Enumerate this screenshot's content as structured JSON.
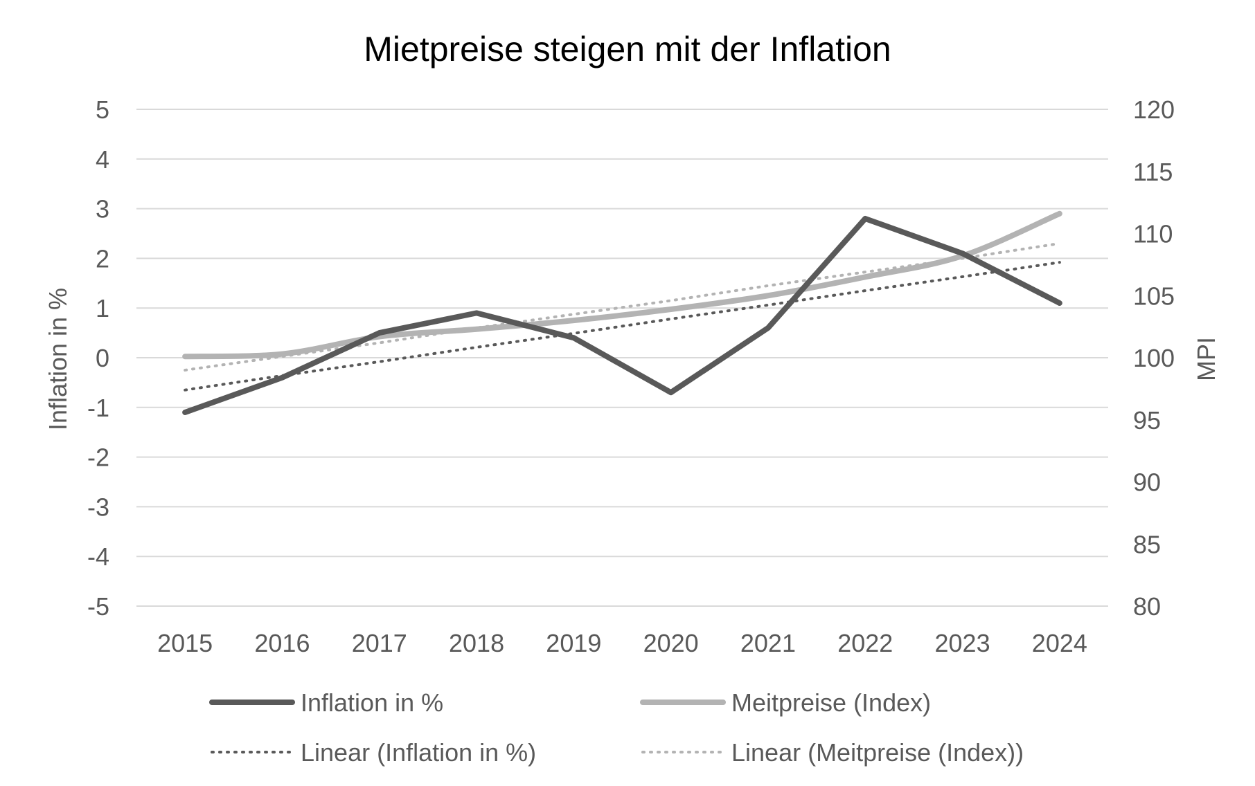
{
  "chart_data": {
    "type": "line",
    "title": "Mietpreise steigen mit der Inflation",
    "categories": [
      "2015",
      "2016",
      "2017",
      "2018",
      "2019",
      "2020",
      "2021",
      "2022",
      "2023",
      "2024"
    ],
    "y_left": {
      "label": "Inflation in %",
      "lim": [
        -5,
        5
      ],
      "ticks": [
        "5",
        "4",
        "3",
        "2",
        "1",
        "0",
        "-1",
        "-2",
        "-3",
        "-4",
        "-5"
      ]
    },
    "y_right": {
      "label": "MPI",
      "lim": [
        80,
        120
      ],
      "ticks": [
        "120",
        "115",
        "110",
        "105",
        "100",
        "95",
        "90",
        "85",
        "80"
      ]
    },
    "grid": true,
    "legend_position": "bottom",
    "series": [
      {
        "name": "Inflation in %",
        "axis": "left",
        "style": "solid",
        "color": "#595959",
        "values": [
          -1.1,
          -0.4,
          0.5,
          0.9,
          0.4,
          -0.7,
          0.6,
          2.8,
          2.1,
          1.1
        ]
      },
      {
        "name": "Meitpreise (Index)",
        "axis": "right",
        "style": "solid",
        "color": "#b3b3b3",
        "values": [
          100.1,
          100.3,
          101.7,
          102.3,
          103.0,
          103.9,
          105.0,
          106.5,
          108.2,
          111.6
        ]
      },
      {
        "name": "Linear (Inflation in %)",
        "axis": "left",
        "style": "dotted",
        "color": "#595959",
        "values": [
          -0.65,
          -0.36,
          -0.08,
          0.21,
          0.49,
          0.78,
          1.06,
          1.35,
          1.63,
          1.92
        ]
      },
      {
        "name": "Linear (Meitpreise (Index))",
        "axis": "right",
        "style": "dotted",
        "color": "#b3b3b3",
        "values": [
          99.0,
          100.1,
          101.2,
          102.4,
          103.5,
          104.6,
          105.8,
          106.9,
          108.0,
          109.2
        ]
      }
    ]
  }
}
